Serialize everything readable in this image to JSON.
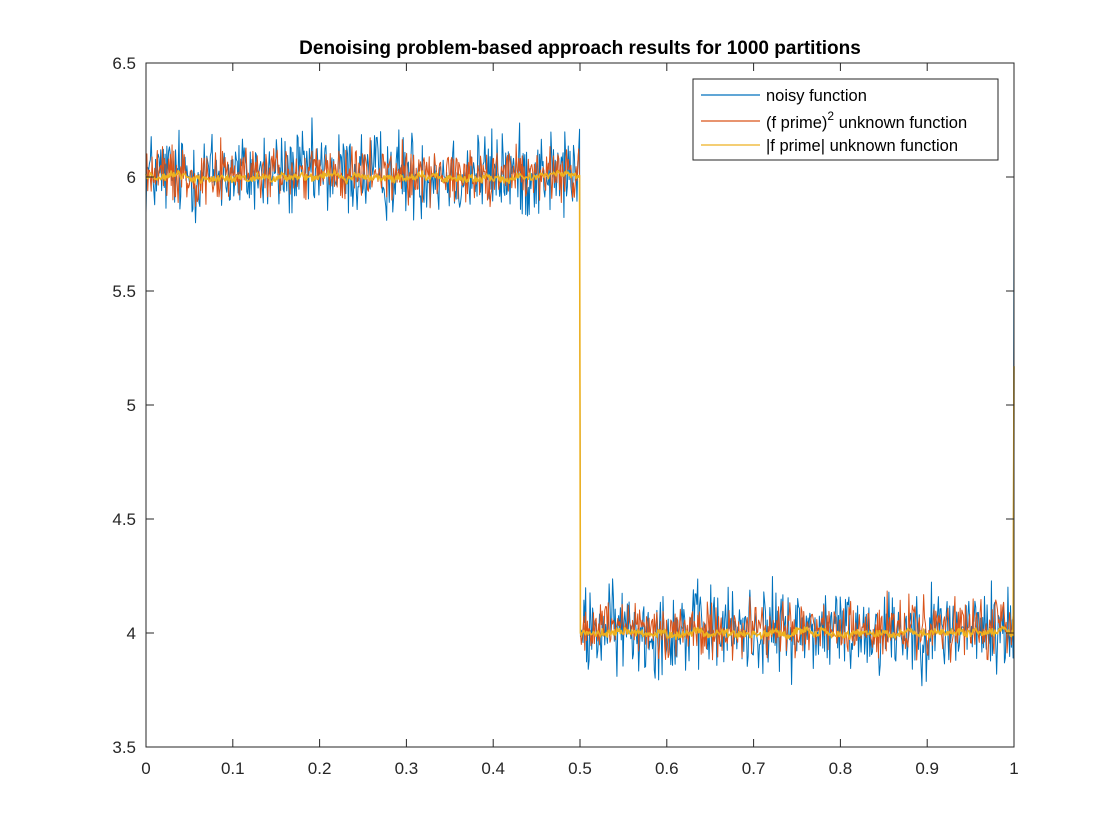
{
  "chart_data": {
    "type": "line",
    "title": "Denoising problem-based approach results for 1000 partitions",
    "xlabel": "",
    "ylabel": "",
    "xlim": [
      0,
      1
    ],
    "ylim": [
      3.5,
      6.5
    ],
    "xticks": [
      0,
      0.1,
      0.2,
      0.3,
      0.4,
      0.5,
      0.6,
      0.7,
      0.8,
      0.9,
      1
    ],
    "xtick_labels": [
      "0",
      "0.1",
      "0.2",
      "0.3",
      "0.4",
      "0.5",
      "0.6",
      "0.7",
      "0.8",
      "0.9",
      "1"
    ],
    "yticks": [
      3.5,
      4,
      4.5,
      5,
      5.5,
      6,
      6.5
    ],
    "ytick_labels": [
      "3.5",
      "4",
      "4.5",
      "5",
      "5.5",
      "6",
      "6.5"
    ],
    "grid": false,
    "legend_position": "top-right",
    "n_points": 1000,
    "step_at": 0.5,
    "series": [
      {
        "name": "noisy function",
        "color": "#0072BD",
        "level_before": 6.0,
        "level_after": 4.0,
        "noise_range": [
          -0.27,
          0.3
        ],
        "end_value": 5.93
      },
      {
        "name": "(f prime)",
        "name_superscript": "2",
        "name_suffix": " unknown function",
        "color": "#D95319",
        "level_before": 6.0,
        "level_after": 4.0,
        "noise_range": [
          -0.17,
          0.2
        ],
        "end_value": 5.3
      },
      {
        "name": "|f prime| unknown function",
        "color": "#EDB120",
        "level_before": 6.0,
        "level_after": 4.0,
        "noise_range": [
          -0.04,
          0.04
        ],
        "end_value": 5.17
      }
    ]
  }
}
